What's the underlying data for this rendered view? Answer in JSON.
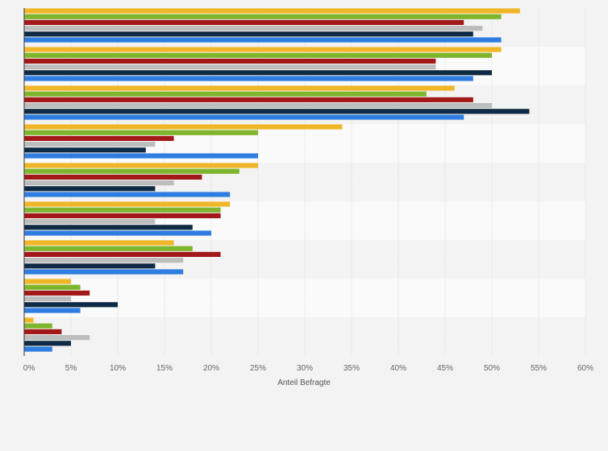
{
  "chart_data": {
    "type": "bar",
    "orientation": "horizontal",
    "xlabel": "Anteil Befragte",
    "xlim": [
      0,
      60
    ],
    "x_ticks": [
      "0%",
      "5%",
      "10%",
      "15%",
      "20%",
      "25%",
      "30%",
      "35%",
      "40%",
      "45%",
      "50%",
      "55%",
      "60%"
    ],
    "grid": true,
    "category_count": 9,
    "series": [
      {
        "color": "#f0b628",
        "values": [
          53,
          51,
          46,
          34,
          25,
          22,
          16,
          5,
          1
        ]
      },
      {
        "color": "#7fb52c",
        "values": [
          51,
          50,
          43,
          25,
          23,
          21,
          18,
          6,
          3
        ]
      },
      {
        "color": "#a31818",
        "values": [
          47,
          44,
          48,
          16,
          19,
          21,
          21,
          7,
          4
        ]
      },
      {
        "color": "#bdbdbd",
        "values": [
          49,
          44,
          50,
          14,
          16,
          14,
          17,
          5,
          7
        ]
      },
      {
        "color": "#0f2a44",
        "values": [
          48,
          50,
          54,
          13,
          14,
          18,
          14,
          10,
          5
        ]
      },
      {
        "color": "#2f7de1",
        "values": [
          51,
          48,
          47,
          25,
          22,
          20,
          17,
          6,
          3
        ]
      }
    ]
  }
}
